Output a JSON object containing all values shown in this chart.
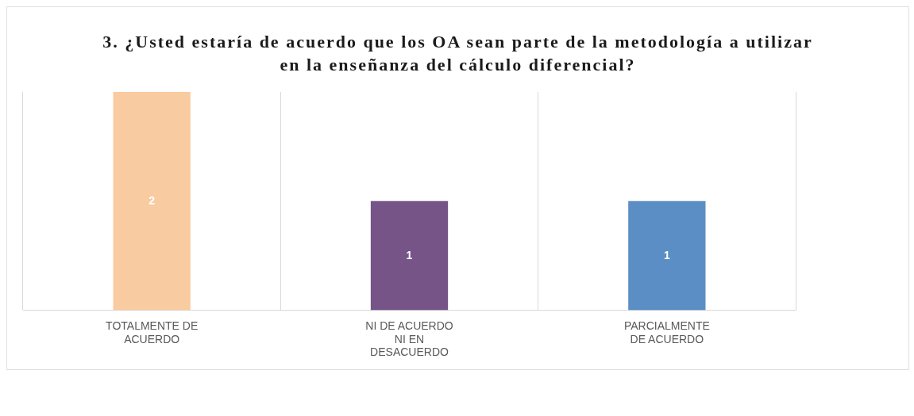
{
  "chart_data": {
    "type": "bar",
    "title": "3.        ¿Usted estaría de acuerdo que los OA sean parte de la metodología a utilizar en la enseñanza del cálculo diferencial?",
    "categories": [
      "TOTALMENTE DE ACUERDO",
      "NI DE ACUERDO NI EN DESACUERDO",
      "PARCIALMENTE DE ACUERDO"
    ],
    "values": [
      2,
      1,
      1
    ],
    "colors": [
      "#f9cba0",
      "#765488",
      "#5b8ec4"
    ],
    "data_labels": true,
    "grid": "x",
    "legend": false
  }
}
